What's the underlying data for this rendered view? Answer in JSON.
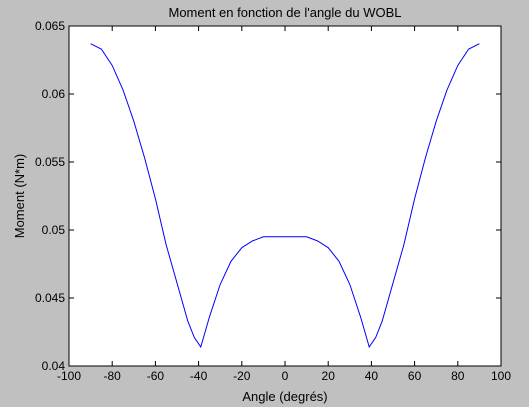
{
  "chart_data": {
    "type": "line",
    "title": "Moment en fonction de l'angle du WOBL",
    "xlabel": "Angle (degrés)",
    "ylabel": "Moment (N*m)",
    "xlim": [
      -100,
      100
    ],
    "ylim": [
      0.04,
      0.065
    ],
    "xticks": [
      -100,
      -80,
      -60,
      -40,
      -20,
      0,
      20,
      40,
      60,
      80,
      100
    ],
    "yticks": [
      0.04,
      0.045,
      0.05,
      0.055,
      0.06,
      0.065
    ],
    "grid": false,
    "colors": {
      "line": "#0000ff",
      "plot_background": "#ffffff",
      "figure_background": "#c0c0c0"
    },
    "series": [
      {
        "x": [
          -90,
          -85,
          -80,
          -75,
          -70,
          -65,
          -60,
          -55,
          -50,
          -45,
          -42,
          -39,
          -35,
          -30,
          -25,
          -20,
          -15,
          -10,
          -5,
          0,
          5,
          10,
          15,
          20,
          25,
          30,
          35,
          39,
          42,
          45,
          50,
          55,
          60,
          65,
          70,
          75,
          80,
          85,
          90
        ],
        "y": [
          0.0637,
          0.0633,
          0.0621,
          0.0603,
          0.058,
          0.0553,
          0.0523,
          0.0489,
          0.0461,
          0.0433,
          0.0421,
          0.0414,
          0.0436,
          0.046,
          0.0477,
          0.0487,
          0.0492,
          0.0495,
          0.0495,
          0.0495,
          0.0495,
          0.0495,
          0.0492,
          0.0487,
          0.0477,
          0.046,
          0.0436,
          0.0414,
          0.0421,
          0.0433,
          0.0461,
          0.0489,
          0.0523,
          0.0553,
          0.058,
          0.0603,
          0.0621,
          0.0633,
          0.0637
        ]
      }
    ]
  }
}
